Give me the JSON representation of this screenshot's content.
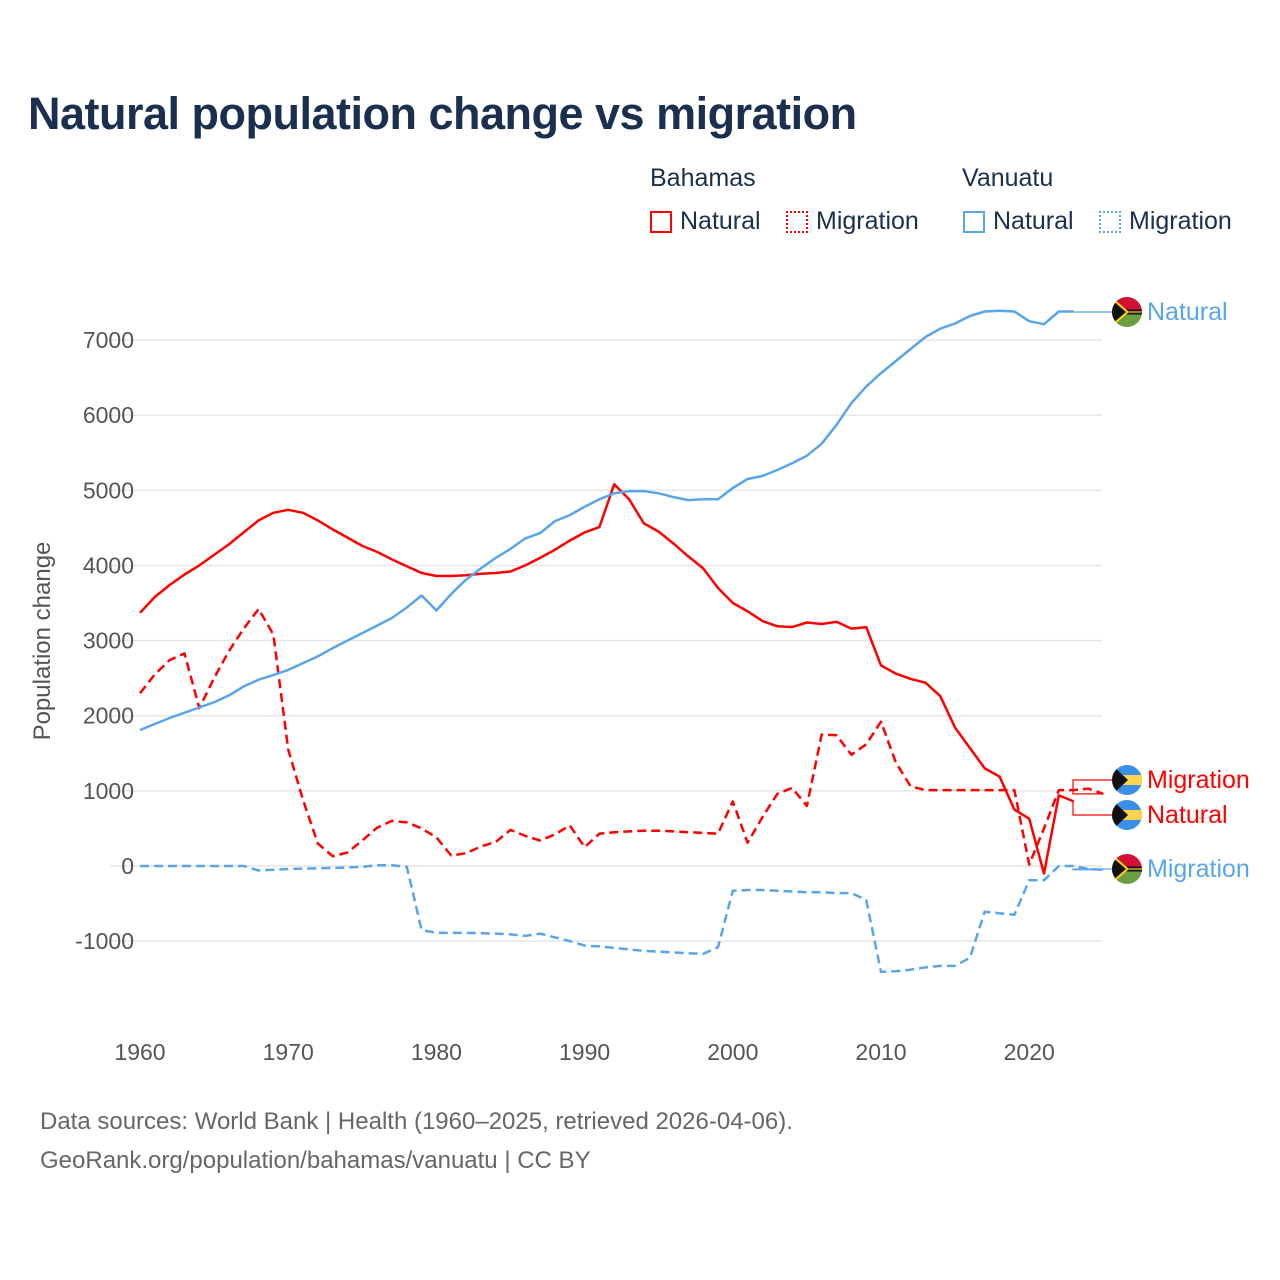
{
  "chart_data": {
    "type": "line",
    "title": "Natural population change vs migration",
    "xlabel": "",
    "ylabel": "Population change",
    "xlim": [
      1960,
      2025
    ],
    "ylim": [
      -2000,
      7650
    ],
    "x_ticks": [
      1960,
      1970,
      1980,
      1990,
      2000,
      2010,
      2020
    ],
    "y_ticks": [
      -1000,
      0,
      1000,
      2000,
      3000,
      4000,
      5000,
      6000,
      7000
    ],
    "grid": true,
    "legend": {
      "placement": "top-right",
      "groups": [
        {
          "name": "Bahamas",
          "items": [
            "Natural",
            "Migration"
          ]
        },
        {
          "name": "Vanuatu",
          "items": [
            "Natural",
            "Migration"
          ]
        }
      ]
    },
    "series": [
      {
        "name": "Bahamas Natural",
        "country": "Bahamas",
        "label": "Natural",
        "color": "#ff0000",
        "dash": false,
        "start_year": 1960,
        "values": [
          3370,
          3580,
          3740,
          3880,
          4000,
          4140,
          4280,
          4440,
          4600,
          4700,
          4740,
          4700,
          4600,
          4480,
          4370,
          4260,
          4180,
          4080,
          3990,
          3900,
          3860,
          3860,
          3870,
          3890,
          3900,
          3920,
          4000,
          4100,
          4210,
          4330,
          4440,
          4510,
          5080,
          4880,
          4560,
          4450,
          4290,
          4120,
          3960,
          3700,
          3500,
          3390,
          3260,
          3190,
          3180,
          3240,
          3220,
          3250,
          3160,
          3180,
          2670,
          2560,
          2490,
          2440,
          2260,
          1840,
          1570,
          1300,
          1190,
          750,
          630,
          -100,
          940,
          860
        ]
      },
      {
        "name": "Bahamas Migration",
        "country": "Bahamas",
        "label": "Migration",
        "color": "#ff0000",
        "dash": true,
        "start_year": 1960,
        "values": [
          2300,
          2550,
          2740,
          2830,
          2100,
          2500,
          2860,
          3160,
          3420,
          3080,
          1550,
          880,
          300,
          130,
          180,
          340,
          510,
          600,
          580,
          500,
          380,
          140,
          170,
          260,
          320,
          480,
          400,
          340,
          420,
          540,
          250,
          430,
          450,
          460,
          470,
          470,
          460,
          450,
          440,
          430,
          860,
          310,
          650,
          960,
          1040,
          800,
          1750,
          1740,
          1480,
          1620,
          1920,
          1380,
          1060,
          1010,
          1010,
          1010,
          1010,
          1010,
          1010,
          1010,
          20,
          500,
          1010,
          1010,
          1030,
          960
        ]
      },
      {
        "name": "Vanuatu Natural",
        "country": "Vanuatu",
        "label": "Natural",
        "color": "#5aa5e8",
        "dash": false,
        "start_year": 1960,
        "values": [
          1810,
          1890,
          1970,
          2040,
          2110,
          2180,
          2270,
          2390,
          2480,
          2540,
          2610,
          2700,
          2790,
          2900,
          3000,
          3100,
          3200,
          3300,
          3440,
          3600,
          3400,
          3620,
          3810,
          3960,
          4100,
          4220,
          4360,
          4430,
          4590,
          4670,
          4780,
          4880,
          4960,
          4990,
          4990,
          4960,
          4910,
          4870,
          4880,
          4880,
          5030,
          5150,
          5190,
          5270,
          5360,
          5460,
          5620,
          5870,
          6160,
          6380,
          6560,
          6720,
          6880,
          7040,
          7150,
          7220,
          7320,
          7380,
          7390,
          7380,
          7250,
          7210,
          7380,
          7380
        ]
      },
      {
        "name": "Vanuatu Migration",
        "country": "Vanuatu",
        "label": "Migration",
        "color": "#5aa5e8",
        "dash": true,
        "start_year": 1960,
        "values": [
          0,
          0,
          0,
          0,
          0,
          0,
          0,
          0,
          -60,
          -50,
          -40,
          -35,
          -30,
          -25,
          -20,
          -10,
          10,
          10,
          -10,
          -850,
          -890,
          -890,
          -890,
          -895,
          -900,
          -910,
          -930,
          -900,
          -950,
          -1000,
          -1060,
          -1070,
          -1090,
          -1110,
          -1130,
          -1140,
          -1150,
          -1160,
          -1170,
          -1080,
          -330,
          -320,
          -320,
          -330,
          -340,
          -350,
          -350,
          -360,
          -360,
          -450,
          -1410,
          -1400,
          -1380,
          -1350,
          -1330,
          -1330,
          -1220,
          -610,
          -630,
          -650,
          -190,
          -190,
          0,
          0,
          -40,
          -50
        ]
      }
    ],
    "end_labels": [
      {
        "series": 2,
        "text": "Natural",
        "flag": "vanuatu-flag-icon"
      },
      {
        "series": 1,
        "text": "Migration",
        "flag": "bahamas-flag-icon"
      },
      {
        "series": 0,
        "text": "Natural",
        "flag": "bahamas-flag-icon"
      },
      {
        "series": 3,
        "text": "Migration",
        "flag": "vanuatu-flag-icon"
      }
    ]
  },
  "legend": {
    "group1": "Bahamas",
    "group2": "Vanuatu",
    "natural": "Natural",
    "migration": "Migration"
  },
  "footer": {
    "line1": "Data sources: World Bank | Health (1960–2025, retrieved 2026-04-06).",
    "line2": "GeoRank.org/population/bahamas/vanuatu | CC BY"
  }
}
